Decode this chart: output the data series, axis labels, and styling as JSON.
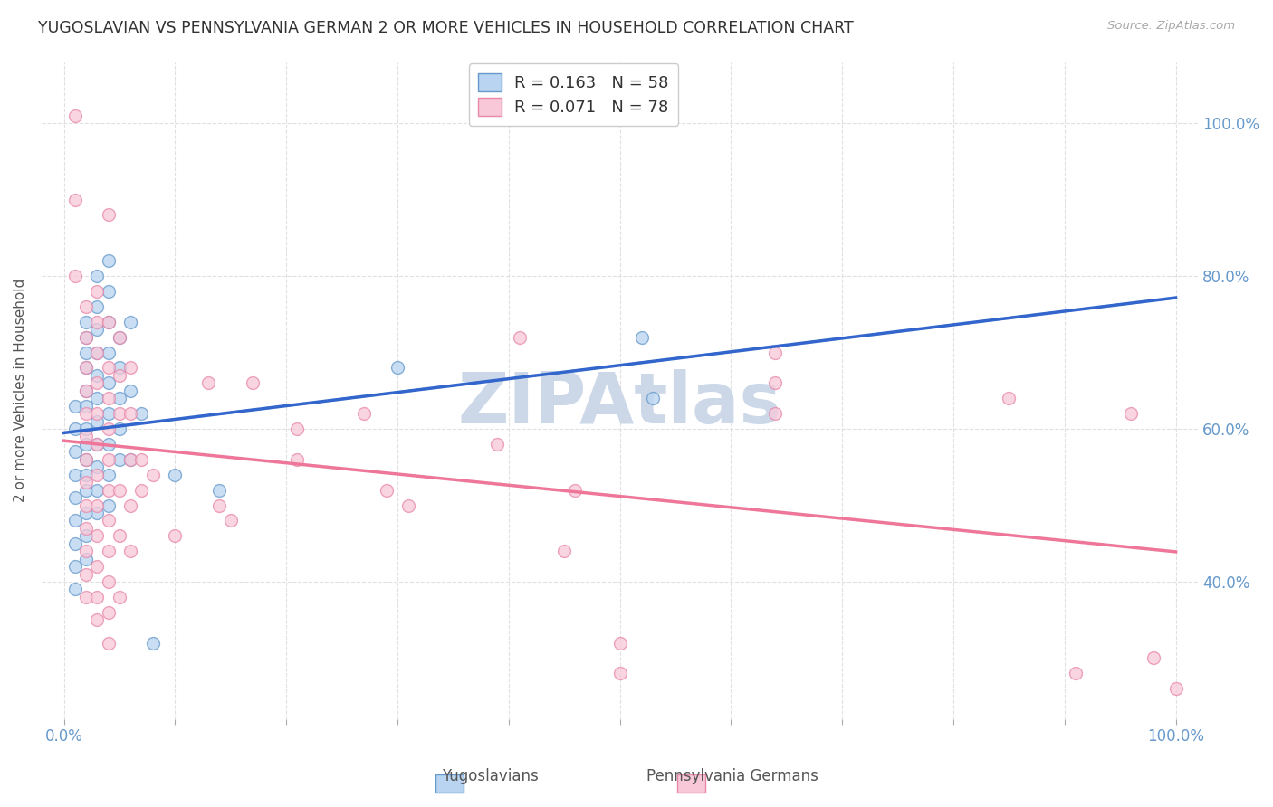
{
  "title": "YUGOSLAVIAN VS PENNSYLVANIA GERMAN 2 OR MORE VEHICLES IN HOUSEHOLD CORRELATION CHART",
  "source": "Source: ZipAtlas.com",
  "ylabel": "2 or more Vehicles in Household",
  "ytick_labels": [
    "100.0%",
    "80.0%",
    "60.0%",
    "40.0%"
  ],
  "ytick_positions": [
    1.0,
    0.8,
    0.6,
    0.4
  ],
  "xlim": [
    -0.02,
    1.02
  ],
  "ylim": [
    0.22,
    1.08
  ],
  "legend_line1": "R = 0.163   N = 58",
  "legend_line2": "R = 0.071   N = 78",
  "yug_fill_color": "#b8d4f0",
  "yug_edge_color": "#6699cc",
  "penn_fill_color": "#f8c8d8",
  "penn_edge_color": "#e888aa",
  "yug_trend_solid_color": "#3366cc",
  "yug_trend_dash_color": "#99bbdd",
  "penn_trend_color": "#ee7799",
  "background_color": "#ffffff",
  "grid_color": "#dddddd",
  "watermark_color": "#ccd8e8",
  "tick_label_color": "#6699cc",
  "title_color": "#333333",
  "source_color": "#aaaaaa",
  "ylabel_color": "#555555",
  "yug_data": [
    [
      0.01,
      0.63
    ],
    [
      0.01,
      0.6
    ],
    [
      0.01,
      0.57
    ],
    [
      0.01,
      0.54
    ],
    [
      0.01,
      0.51
    ],
    [
      0.01,
      0.48
    ],
    [
      0.01,
      0.45
    ],
    [
      0.01,
      0.42
    ],
    [
      0.01,
      0.39
    ],
    [
      0.02,
      0.74
    ],
    [
      0.02,
      0.72
    ],
    [
      0.02,
      0.7
    ],
    [
      0.02,
      0.68
    ],
    [
      0.02,
      0.65
    ],
    [
      0.02,
      0.63
    ],
    [
      0.02,
      0.6
    ],
    [
      0.02,
      0.58
    ],
    [
      0.02,
      0.56
    ],
    [
      0.02,
      0.54
    ],
    [
      0.02,
      0.52
    ],
    [
      0.02,
      0.49
    ],
    [
      0.02,
      0.46
    ],
    [
      0.02,
      0.43
    ],
    [
      0.03,
      0.8
    ],
    [
      0.03,
      0.76
    ],
    [
      0.03,
      0.73
    ],
    [
      0.03,
      0.7
    ],
    [
      0.03,
      0.67
    ],
    [
      0.03,
      0.64
    ],
    [
      0.03,
      0.61
    ],
    [
      0.03,
      0.58
    ],
    [
      0.03,
      0.55
    ],
    [
      0.03,
      0.52
    ],
    [
      0.03,
      0.49
    ],
    [
      0.04,
      0.82
    ],
    [
      0.04,
      0.78
    ],
    [
      0.04,
      0.74
    ],
    [
      0.04,
      0.7
    ],
    [
      0.04,
      0.66
    ],
    [
      0.04,
      0.62
    ],
    [
      0.04,
      0.58
    ],
    [
      0.04,
      0.54
    ],
    [
      0.04,
      0.5
    ],
    [
      0.05,
      0.72
    ],
    [
      0.05,
      0.68
    ],
    [
      0.05,
      0.64
    ],
    [
      0.05,
      0.6
    ],
    [
      0.05,
      0.56
    ],
    [
      0.06,
      0.74
    ],
    [
      0.06,
      0.65
    ],
    [
      0.06,
      0.56
    ],
    [
      0.07,
      0.62
    ],
    [
      0.08,
      0.32
    ],
    [
      0.1,
      0.54
    ],
    [
      0.14,
      0.52
    ],
    [
      0.3,
      0.68
    ],
    [
      0.52,
      0.72
    ],
    [
      0.53,
      0.64
    ]
  ],
  "penn_data": [
    [
      0.01,
      1.01
    ],
    [
      0.01,
      0.9
    ],
    [
      0.01,
      0.8
    ],
    [
      0.02,
      0.76
    ],
    [
      0.02,
      0.72
    ],
    [
      0.02,
      0.68
    ],
    [
      0.02,
      0.65
    ],
    [
      0.02,
      0.62
    ],
    [
      0.02,
      0.59
    ],
    [
      0.02,
      0.56
    ],
    [
      0.02,
      0.53
    ],
    [
      0.02,
      0.5
    ],
    [
      0.02,
      0.47
    ],
    [
      0.02,
      0.44
    ],
    [
      0.02,
      0.41
    ],
    [
      0.02,
      0.38
    ],
    [
      0.03,
      0.78
    ],
    [
      0.03,
      0.74
    ],
    [
      0.03,
      0.7
    ],
    [
      0.03,
      0.66
    ],
    [
      0.03,
      0.62
    ],
    [
      0.03,
      0.58
    ],
    [
      0.03,
      0.54
    ],
    [
      0.03,
      0.5
    ],
    [
      0.03,
      0.46
    ],
    [
      0.03,
      0.42
    ],
    [
      0.03,
      0.38
    ],
    [
      0.03,
      0.35
    ],
    [
      0.04,
      0.88
    ],
    [
      0.04,
      0.74
    ],
    [
      0.04,
      0.68
    ],
    [
      0.04,
      0.64
    ],
    [
      0.04,
      0.6
    ],
    [
      0.04,
      0.56
    ],
    [
      0.04,
      0.52
    ],
    [
      0.04,
      0.48
    ],
    [
      0.04,
      0.44
    ],
    [
      0.04,
      0.4
    ],
    [
      0.04,
      0.36
    ],
    [
      0.04,
      0.32
    ],
    [
      0.05,
      0.72
    ],
    [
      0.05,
      0.67
    ],
    [
      0.05,
      0.62
    ],
    [
      0.05,
      0.52
    ],
    [
      0.05,
      0.46
    ],
    [
      0.05,
      0.38
    ],
    [
      0.06,
      0.68
    ],
    [
      0.06,
      0.62
    ],
    [
      0.06,
      0.56
    ],
    [
      0.06,
      0.5
    ],
    [
      0.06,
      0.44
    ],
    [
      0.07,
      0.56
    ],
    [
      0.07,
      0.52
    ],
    [
      0.08,
      0.54
    ],
    [
      0.1,
      0.46
    ],
    [
      0.13,
      0.66
    ],
    [
      0.14,
      0.5
    ],
    [
      0.15,
      0.48
    ],
    [
      0.17,
      0.66
    ],
    [
      0.21,
      0.6
    ],
    [
      0.21,
      0.56
    ],
    [
      0.27,
      0.62
    ],
    [
      0.29,
      0.52
    ],
    [
      0.31,
      0.5
    ],
    [
      0.39,
      0.58
    ],
    [
      0.41,
      0.72
    ],
    [
      0.45,
      0.44
    ],
    [
      0.46,
      0.52
    ],
    [
      0.5,
      0.32
    ],
    [
      0.5,
      0.28
    ],
    [
      0.64,
      0.7
    ],
    [
      0.64,
      0.66
    ],
    [
      0.64,
      0.62
    ],
    [
      0.85,
      0.64
    ],
    [
      0.91,
      0.28
    ],
    [
      0.96,
      0.62
    ],
    [
      0.98,
      0.3
    ],
    [
      1.0,
      0.26
    ]
  ]
}
